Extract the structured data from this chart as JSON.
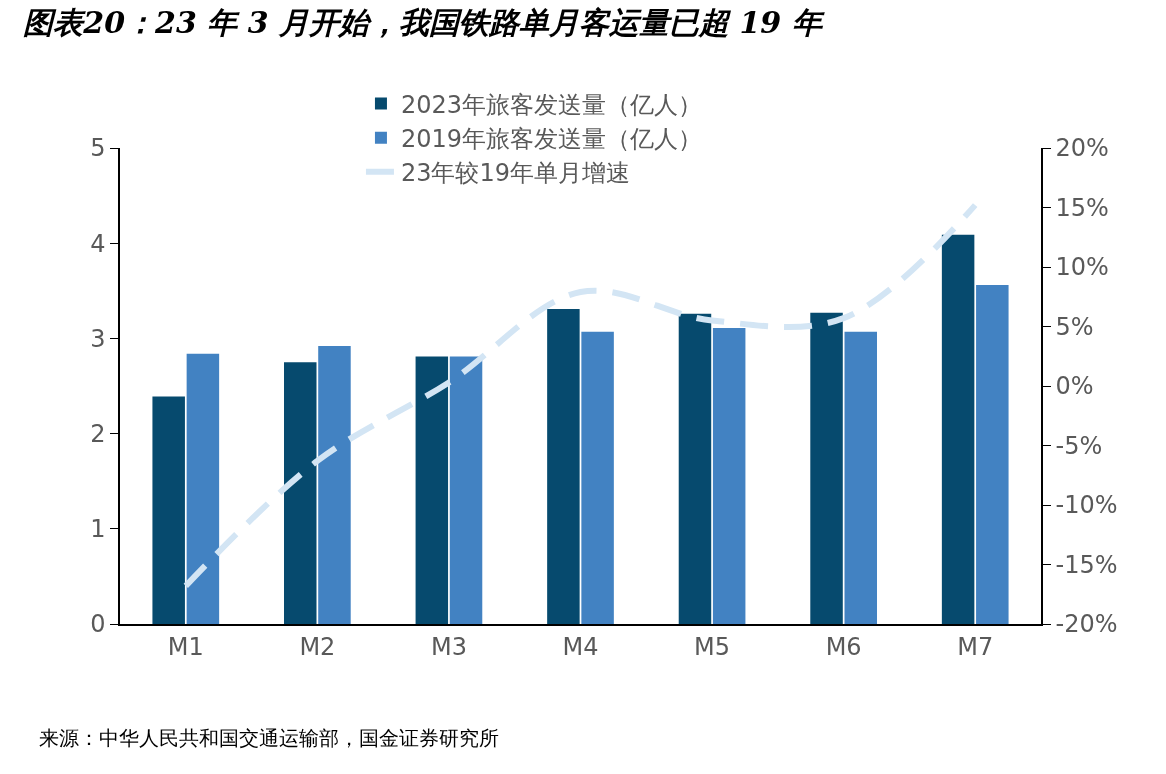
{
  "chart_data": {
    "type": "bar",
    "title": "图表20：23 年 3 月开始，我国铁路单月客运量已超 19 年",
    "categories": [
      "M1",
      "M2",
      "M3",
      "M4",
      "M5",
      "M6",
      "M7"
    ],
    "series": [
      {
        "name": "2023年旅客发送量（亿人）",
        "color": "#064a6e",
        "values": [
          2.39,
          2.75,
          2.81,
          3.31,
          3.26,
          3.27,
          4.09
        ]
      },
      {
        "name": "2019年旅客发送量（亿人）",
        "color": "#4282c2",
        "values": [
          2.84,
          2.92,
          2.81,
          3.07,
          3.11,
          3.07,
          3.56
        ]
      },
      {
        "name": "23年较19年单月增速",
        "type": "line",
        "axis": "y2",
        "color": "#d3e5f4",
        "line_style": "dashed",
        "values": [
          -16.8,
          -6.3,
          0.3,
          7.9,
          5.5,
          5.7,
          15.2
        ]
      }
    ],
    "ylim": [
      0,
      5
    ],
    "yticks": [
      0,
      1,
      2,
      3,
      4,
      5
    ],
    "y2lim": [
      -20,
      20
    ],
    "y2ticks": [
      {
        "value": -20,
        "label": "-20%"
      },
      {
        "value": -15,
        "label": "-15%"
      },
      {
        "value": -10,
        "label": "-10%"
      },
      {
        "value": -5,
        "label": "-5%"
      },
      {
        "value": 0,
        "label": "0%"
      },
      {
        "value": 5,
        "label": "5%"
      },
      {
        "value": 10,
        "label": "10%"
      },
      {
        "value": 15,
        "label": "15%"
      },
      {
        "value": 20,
        "label": "20%"
      }
    ],
    "grid": false,
    "legend": "top",
    "annotations": [
      "来源：中华人民共和国交通运输部，国金证券研究所"
    ]
  }
}
